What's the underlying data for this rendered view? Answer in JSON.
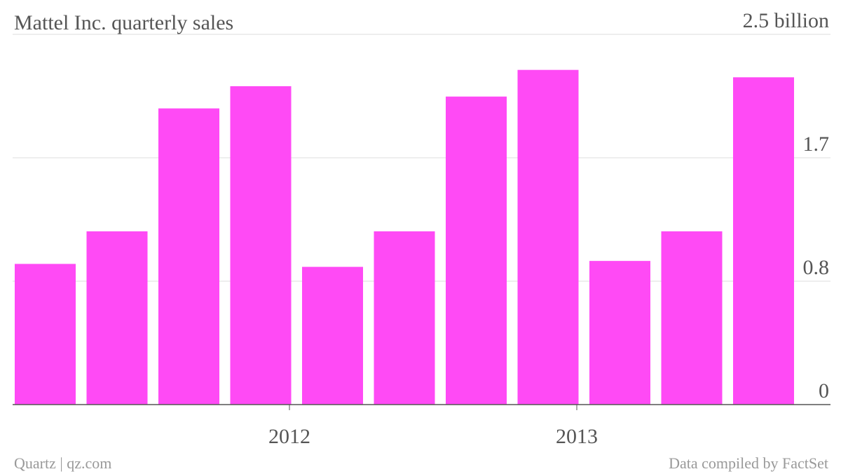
{
  "chart_data": {
    "type": "bar",
    "title": "Mattel Inc. quarterly sales",
    "categories": [
      null,
      null,
      null,
      null,
      null,
      null,
      null,
      null,
      null,
      null,
      null
    ],
    "values": [
      0.95,
      1.17,
      2.0,
      2.15,
      0.93,
      1.17,
      2.08,
      2.26,
      0.97,
      1.17,
      2.21
    ],
    "color": "#ff4af5",
    "ylim": [
      0,
      2.5
    ],
    "yticks": [
      0,
      {
        "value": 0.8333,
        "label": "0.8"
      },
      {
        "value": 1.6667,
        "label": "1.7"
      },
      {
        "value": 2.5,
        "label": "2.5 billion"
      }
    ],
    "xticks": [
      {
        "value": 3.4,
        "label": "2012"
      },
      {
        "value": 7.4,
        "label": "2013"
      }
    ],
    "grid": true,
    "source": "Quartz | qz.com",
    "note": "Data compiled by FactSet"
  }
}
